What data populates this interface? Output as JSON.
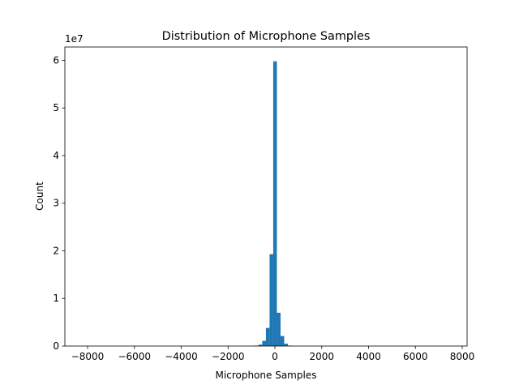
{
  "chart_data": {
    "type": "histogram",
    "title": "Distribution of Microphone Samples",
    "x_label": "Microphone Samples",
    "y_label": "Count",
    "y_offset_label": "1e7",
    "color": "#1f77b4",
    "bins": [
      -853,
      -696,
      -540,
      -384,
      -228,
      -72,
      84,
      240,
      396,
      552,
      708
    ],
    "values": [
      100000,
      300000,
      1100000,
      3800000,
      19300000,
      59800000,
      7000000,
      2100000,
      500000,
      100000
    ],
    "xlim": [
      -8970,
      8208
    ],
    "xticks": [
      {
        "value": -8000,
        "label": "−8000"
      },
      {
        "value": -6000,
        "label": "−6000"
      },
      {
        "value": -4000,
        "label": "−4000"
      },
      {
        "value": -2000,
        "label": "−2000"
      },
      0,
      2000,
      4000,
      6000,
      8000
    ],
    "ylim": [
      0,
      62800000
    ],
    "yticks": [
      0,
      {
        "value": 10000000,
        "label": "1"
      },
      {
        "value": 20000000,
        "label": "2"
      },
      {
        "value": 30000000,
        "label": "3"
      },
      {
        "value": 40000000,
        "label": "4"
      },
      {
        "value": 50000000,
        "label": "5"
      },
      {
        "value": 60000000,
        "label": "6"
      }
    ]
  }
}
